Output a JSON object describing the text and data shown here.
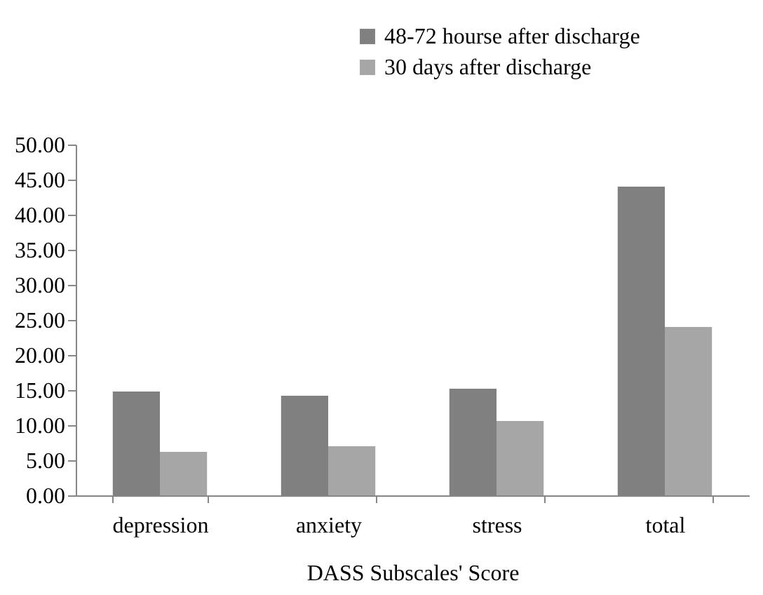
{
  "chart_data": {
    "type": "bar",
    "xlabel": "DASS Subscales' Score",
    "categories": [
      "depression",
      "anxiety",
      "stress",
      "total"
    ],
    "series": [
      {
        "name": "48-72 hourse after discharge",
        "color": "#808080",
        "values": [
          14.8,
          14.2,
          15.2,
          44.0
        ]
      },
      {
        "name": "30 days after discharge",
        "color": "#a6a6a6",
        "values": [
          6.2,
          7.0,
          10.6,
          24.0
        ]
      }
    ],
    "ylim": [
      0,
      50
    ],
    "yticks": [
      {
        "value": 0,
        "label": "0.00"
      },
      {
        "value": 5,
        "label": "5.00"
      },
      {
        "value": 10,
        "label": "10.00"
      },
      {
        "value": 15,
        "label": "15.00"
      },
      {
        "value": 20,
        "label": "20.00"
      },
      {
        "value": 25,
        "label": "25.00"
      },
      {
        "value": 30,
        "label": "30.00"
      },
      {
        "value": 35,
        "label": "35.00"
      },
      {
        "value": 40,
        "label": "40.00"
      },
      {
        "value": 45,
        "label": "45.00"
      },
      {
        "value": 50,
        "label": "50.00"
      }
    ],
    "grid": false,
    "legend": "top right"
  }
}
